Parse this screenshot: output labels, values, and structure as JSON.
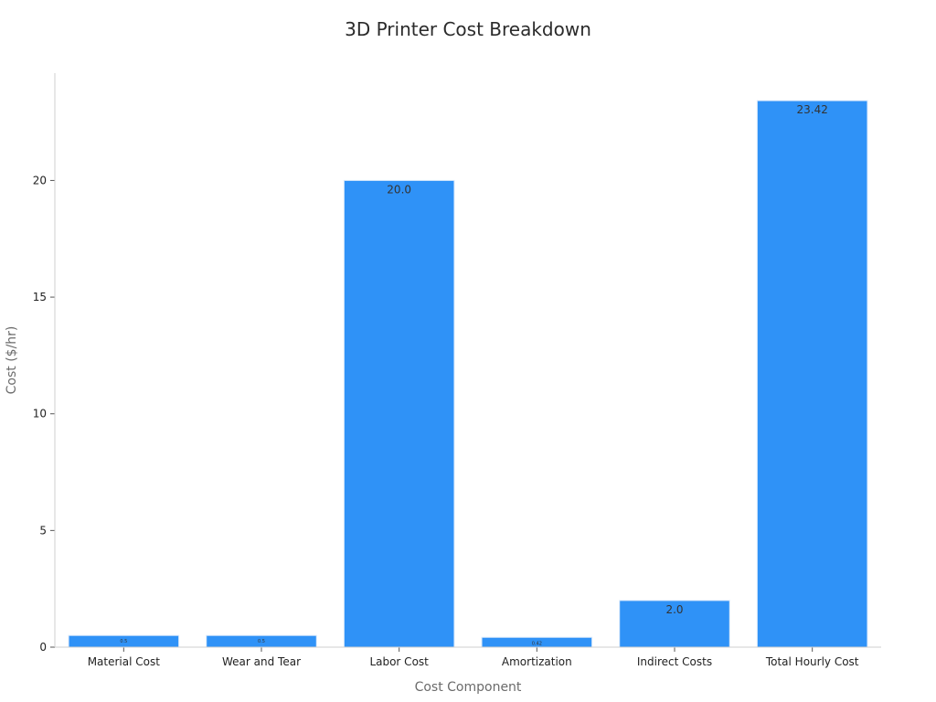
{
  "chart_data": {
    "type": "bar",
    "title": "3D Printer Cost Breakdown",
    "xlabel": "Cost Component",
    "ylabel": "Cost ($/hr)",
    "categories": [
      "Material Cost",
      "Wear and Tear",
      "Labor Cost",
      "Amortization",
      "Indirect Costs",
      "Total Hourly Cost"
    ],
    "values": [
      0.5,
      0.5,
      20.0,
      0.42,
      2.0,
      23.42
    ],
    "data_labels": [
      "0.5",
      "0.5",
      "20.0",
      "0.42",
      "2.0",
      "23.42"
    ],
    "ylim": [
      0,
      24.6
    ],
    "yticks": [
      0,
      5,
      10,
      15,
      20
    ],
    "grid": false,
    "legend": "none",
    "bar_color": "#2f92f7"
  }
}
